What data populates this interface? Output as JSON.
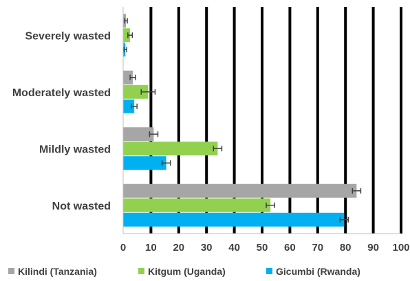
{
  "chart_data": {
    "type": "bar",
    "orientation": "horizontal",
    "title": "",
    "xlabel": "",
    "ylabel": "",
    "xlim": [
      0,
      100
    ],
    "xticks": [
      "0",
      "10",
      "20",
      "30",
      "40",
      "50",
      "60",
      "70",
      "80",
      "90",
      "100"
    ],
    "grid": true,
    "legend_position": "bottom",
    "categories": [
      "Severely wasted",
      "Moderately wasted",
      "Mildly wasted",
      "Not wasted"
    ],
    "series": [
      {
        "name": "Kilindi (Tanzania)",
        "color": "#a6a6a6",
        "values": [
          1,
          3.5,
          11,
          84
        ],
        "errors": [
          0.5,
          1,
          1.5,
          1.5
        ]
      },
      {
        "name": "Kitgum (Uganda)",
        "color": "#92d050",
        "values": [
          2.5,
          9,
          34,
          53
        ],
        "errors": [
          0.8,
          2.5,
          1.5,
          1.5
        ]
      },
      {
        "name": "Gicumbi (Rwanda)",
        "color": "#00b0f0",
        "values": [
          0.8,
          4,
          15.5,
          79.5
        ],
        "errors": [
          0.5,
          1,
          1.5,
          1.5
        ]
      }
    ]
  }
}
